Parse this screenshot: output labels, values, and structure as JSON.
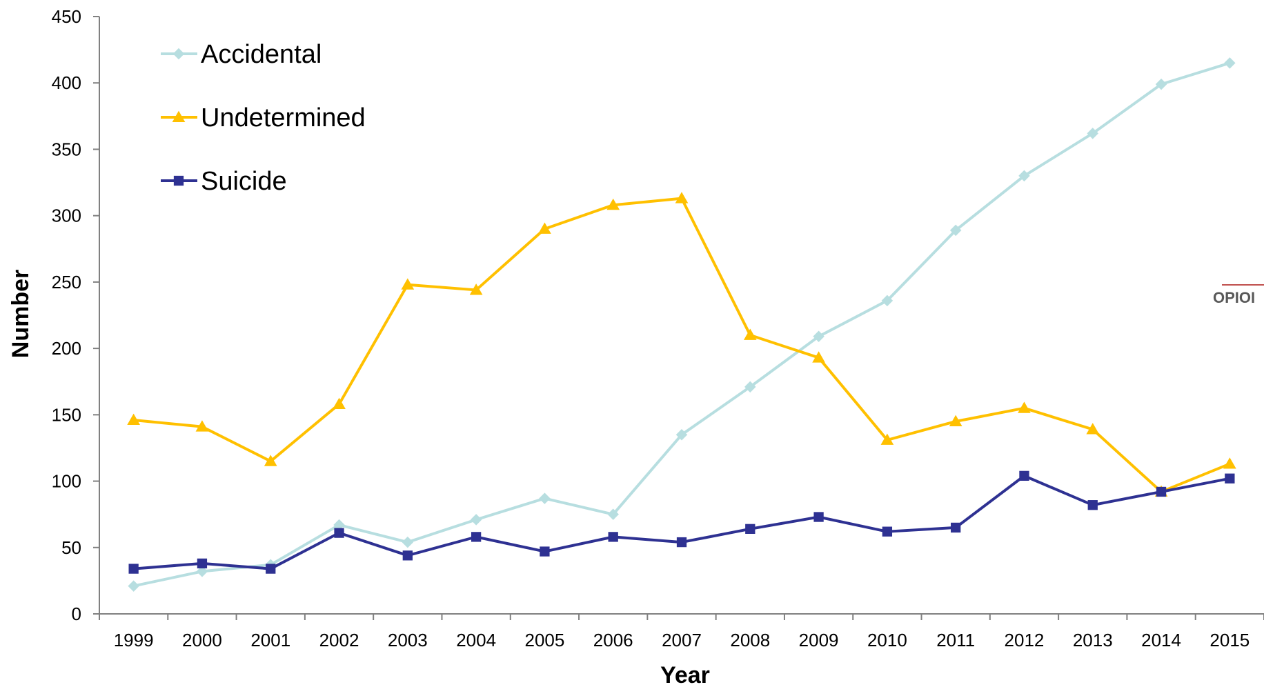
{
  "chart_data": {
    "type": "line",
    "title": "",
    "xlabel": "Year",
    "ylabel": "Number",
    "categories": [
      "1999",
      "2000",
      "2001",
      "2002",
      "2003",
      "2004",
      "2005",
      "2006",
      "2007",
      "2008",
      "2009",
      "2010",
      "2011",
      "2012",
      "2013",
      "2014",
      "2015"
    ],
    "ylim": [
      0,
      450
    ],
    "yticks": [
      0,
      50,
      100,
      150,
      200,
      250,
      300,
      350,
      400,
      450
    ],
    "grid": false,
    "legend": "top-left",
    "series": [
      {
        "name": "Accidental",
        "color": "#B7DEE0",
        "marker": "diamond",
        "values": [
          21,
          32,
          37,
          67,
          54,
          71,
          87,
          75,
          135,
          171,
          209,
          236,
          289,
          330,
          362,
          399,
          415
        ]
      },
      {
        "name": "Undetermined",
        "color": "#FFC000",
        "marker": "triangle",
        "values": [
          146,
          141,
          115,
          158,
          248,
          244,
          290,
          308,
          313,
          210,
          193,
          131,
          145,
          155,
          139,
          92,
          113
        ]
      },
      {
        "name": "Suicide",
        "color": "#2E3192",
        "marker": "square",
        "values": [
          34,
          38,
          34,
          61,
          44,
          58,
          47,
          58,
          54,
          64,
          73,
          62,
          65,
          104,
          82,
          92,
          102
        ]
      }
    ]
  },
  "side_text": "OPIOI",
  "side_text_rule_color": "#C0504D"
}
